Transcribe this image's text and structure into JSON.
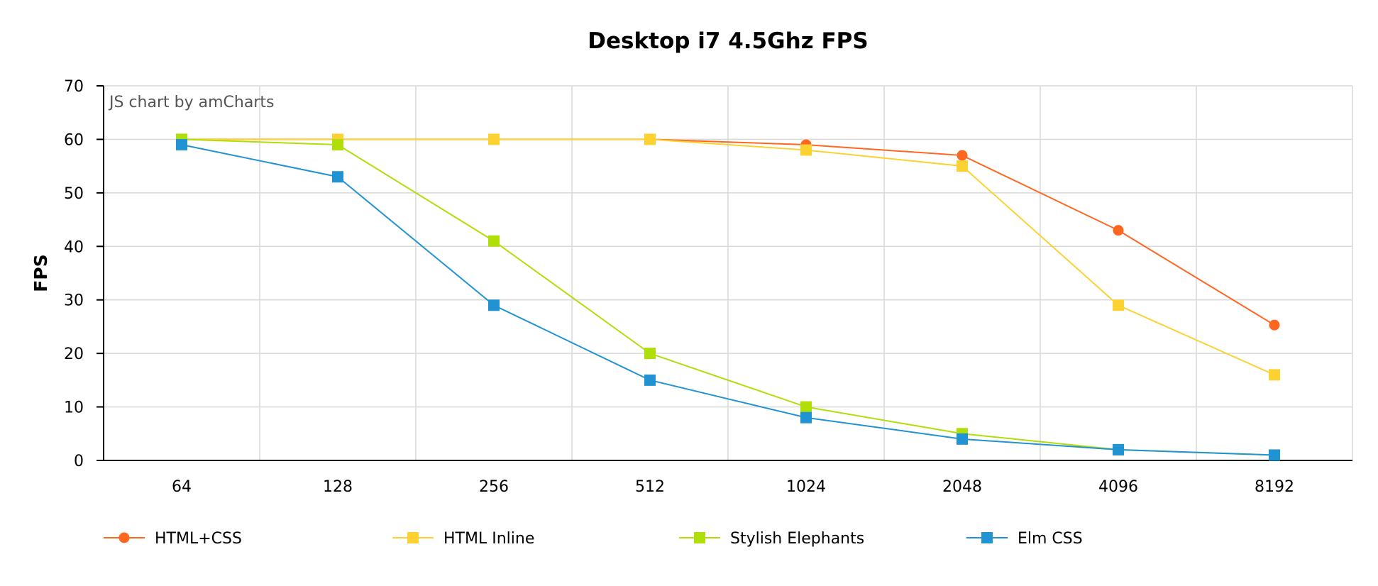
{
  "chart_data": {
    "type": "line",
    "title": "Desktop i7 4.5Ghz FPS",
    "xlabel": "",
    "ylabel": "FPS",
    "credit": "JS chart by amCharts",
    "categories": [
      "64",
      "128",
      "256",
      "512",
      "1024",
      "2048",
      "4096",
      "8192"
    ],
    "ylim": [
      0,
      70
    ],
    "yticks": [
      0,
      10,
      20,
      30,
      40,
      50,
      60,
      70
    ],
    "grid": true,
    "legend_position": "bottom",
    "series": [
      {
        "name": "HTML+CSS",
        "color": "#ff6720",
        "marker": "circle",
        "values": [
          60,
          60,
          60,
          60,
          59,
          57,
          43,
          25.3
        ]
      },
      {
        "name": "HTML Inline",
        "color": "#fcd232",
        "marker": "square",
        "values": [
          60,
          60,
          60,
          60,
          58,
          55,
          29,
          16
        ]
      },
      {
        "name": "Stylish Elephants",
        "color": "#b0de09",
        "marker": "square",
        "values": [
          60,
          59,
          41,
          20,
          10,
          5,
          2,
          1
        ]
      },
      {
        "name": "Elm CSS",
        "color": "#2293d2",
        "marker": "square",
        "values": [
          59,
          53,
          29,
          15,
          8,
          4,
          2,
          1
        ]
      }
    ]
  }
}
